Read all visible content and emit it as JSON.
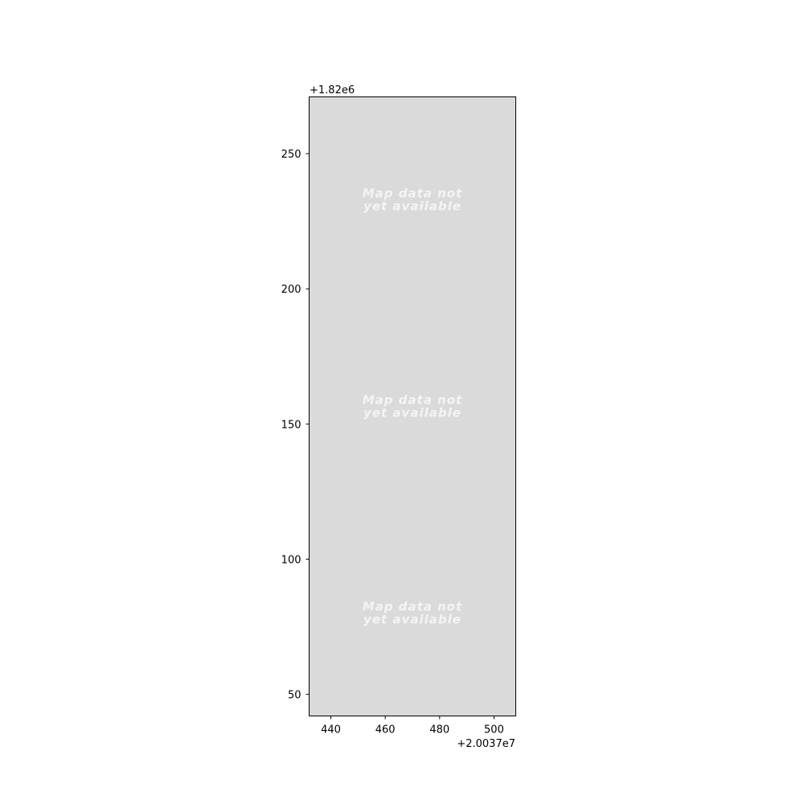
{
  "chart_data": {
    "type": "map",
    "title": "",
    "xlabel": "",
    "ylabel": "",
    "x_offset_label": "+2.0037e7",
    "y_offset_label": "+1.82e6",
    "xlim": [
      432,
      508
    ],
    "ylim": [
      42,
      271
    ],
    "x_ticks": [
      {
        "value": 440,
        "label": "440"
      },
      {
        "value": 460,
        "label": "460"
      },
      {
        "value": 480,
        "label": "480"
      },
      {
        "value": 500,
        "label": "500"
      }
    ],
    "y_ticks": [
      {
        "value": 50,
        "label": "50"
      },
      {
        "value": 100,
        "label": "100"
      },
      {
        "value": 150,
        "label": "150"
      },
      {
        "value": 200,
        "label": "200"
      },
      {
        "value": 250,
        "label": "250"
      }
    ],
    "grid": false,
    "tiles": [
      {
        "center_x": 470,
        "center_y": 233,
        "line1": "Map data not",
        "line2": "yet available"
      },
      {
        "center_x": 470,
        "center_y": 156.5,
        "line1": "Map data not",
        "line2": "yet available"
      },
      {
        "center_x": 470,
        "center_y": 80,
        "line1": "Map data not",
        "line2": "yet available"
      }
    ],
    "colors": {
      "map_background": "#dadada",
      "watermark_text": "#f4f4f4",
      "axis": "#000000"
    }
  }
}
